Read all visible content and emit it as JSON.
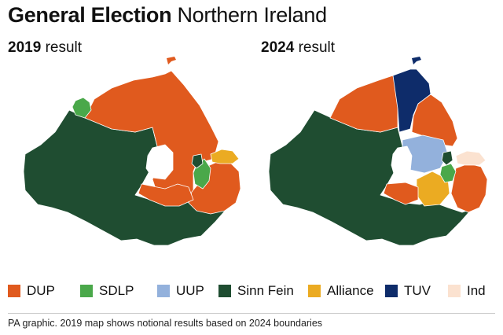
{
  "title": {
    "bold": "General Election",
    "regular": "Northern Ireland"
  },
  "maps": [
    {
      "year": "2019",
      "label": "result"
    },
    {
      "year": "2024",
      "label": "result"
    }
  ],
  "legend": [
    {
      "label": "DUP",
      "color": "#e05a1e"
    },
    {
      "label": "SDLP",
      "color": "#4aa84a"
    },
    {
      "label": "UUP",
      "color": "#93b1dc"
    },
    {
      "label": "Sinn Fein",
      "color": "#1f4d31"
    },
    {
      "label": "Alliance",
      "color": "#ebab22"
    },
    {
      "label": "TUV",
      "color": "#0e2c6a"
    },
    {
      "label": "Ind",
      "color": "#fbe2d0"
    }
  ],
  "colors": {
    "lough": "#ffffff",
    "border": "#ffffff"
  },
  "footnote": "PA graphic. 2019 map shows notional results based on 2024 boundaries"
}
